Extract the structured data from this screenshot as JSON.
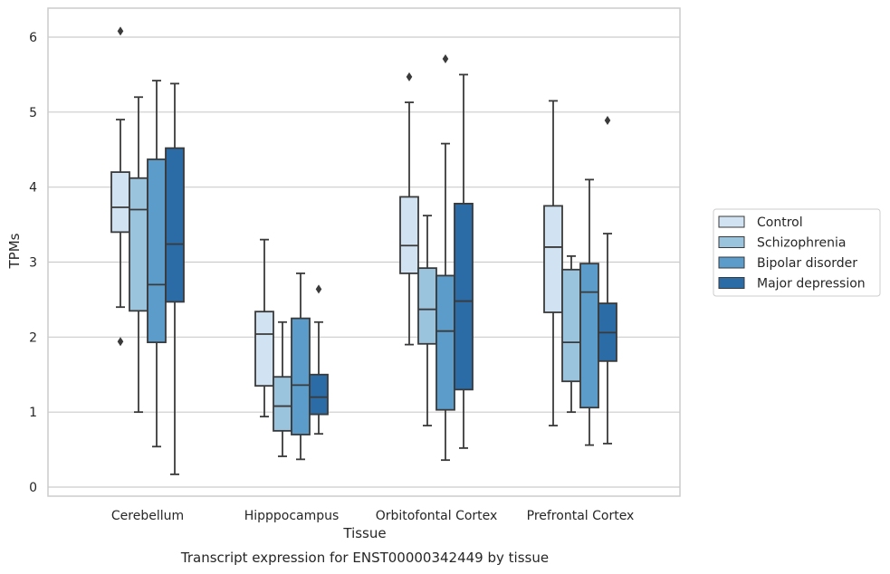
{
  "chart_data": {
    "type": "box",
    "xlabel": "Tissue",
    "ylabel": "TPMs",
    "caption": "Transcript expression for ENST00000342449 by tissue",
    "ylim": [
      -0.1,
      6.4
    ],
    "yticks": [
      0,
      1,
      2,
      3,
      4,
      5,
      6
    ],
    "grid": "horizontal",
    "legend_position": "right",
    "categories": [
      "Cerebellum",
      "Hipppocampus",
      "Orbitofontal Cortex",
      "Prefrontal Cortex"
    ],
    "series": [
      {
        "name": "Control",
        "color": "#d1e2f2",
        "boxes": [
          {
            "whislo": 2.4,
            "q1": 3.4,
            "med": 3.73,
            "q3": 4.2,
            "whishi": 4.9,
            "fliers": [
              6.08,
              1.94
            ]
          },
          {
            "whislo": 0.94,
            "q1": 1.35,
            "med": 2.04,
            "q3": 2.34,
            "whishi": 3.3,
            "fliers": []
          },
          {
            "whislo": 1.9,
            "q1": 2.85,
            "med": 3.22,
            "q3": 3.87,
            "whishi": 5.13,
            "fliers": [
              5.47
            ]
          },
          {
            "whislo": 0.82,
            "q1": 2.33,
            "med": 3.2,
            "q3": 3.75,
            "whishi": 5.15,
            "fliers": []
          }
        ]
      },
      {
        "name": "Schizophrenia",
        "color": "#9ac3de",
        "boxes": [
          {
            "whislo": 1.0,
            "q1": 2.35,
            "med": 3.7,
            "q3": 4.12,
            "whishi": 5.2,
            "fliers": []
          },
          {
            "whislo": 0.41,
            "q1": 0.75,
            "med": 1.08,
            "q3": 1.47,
            "whishi": 2.2,
            "fliers": []
          },
          {
            "whislo": 0.82,
            "q1": 1.91,
            "med": 2.37,
            "q3": 2.92,
            "whishi": 3.62,
            "fliers": []
          },
          {
            "whislo": 1.0,
            "q1": 1.41,
            "med": 1.93,
            "q3": 2.9,
            "whishi": 3.08,
            "fliers": []
          }
        ]
      },
      {
        "name": "Bipolar disorder",
        "color": "#5b9ccb",
        "boxes": [
          {
            "whislo": 0.54,
            "q1": 1.93,
            "med": 2.7,
            "q3": 4.37,
            "whishi": 5.42,
            "fliers": []
          },
          {
            "whislo": 0.37,
            "q1": 0.7,
            "med": 1.36,
            "q3": 2.25,
            "whishi": 2.85,
            "fliers": []
          },
          {
            "whislo": 0.36,
            "q1": 1.03,
            "med": 2.08,
            "q3": 2.82,
            "whishi": 4.58,
            "fliers": [
              5.71
            ]
          },
          {
            "whislo": 0.56,
            "q1": 1.06,
            "med": 2.6,
            "q3": 2.98,
            "whishi": 4.1,
            "fliers": []
          }
        ]
      },
      {
        "name": "Major depression",
        "color": "#2b6ba6",
        "boxes": [
          {
            "whislo": 0.17,
            "q1": 2.47,
            "med": 3.24,
            "q3": 4.52,
            "whishi": 5.38,
            "fliers": []
          },
          {
            "whislo": 0.71,
            "q1": 0.97,
            "med": 1.2,
            "q3": 1.5,
            "whishi": 2.2,
            "fliers": [
              2.64
            ]
          },
          {
            "whislo": 0.52,
            "q1": 1.3,
            "med": 2.48,
            "q3": 3.78,
            "whishi": 5.5,
            "fliers": []
          },
          {
            "whislo": 0.58,
            "q1": 1.68,
            "med": 2.06,
            "q3": 2.45,
            "whishi": 3.38,
            "fliers": [
              4.89
            ]
          }
        ]
      }
    ]
  }
}
